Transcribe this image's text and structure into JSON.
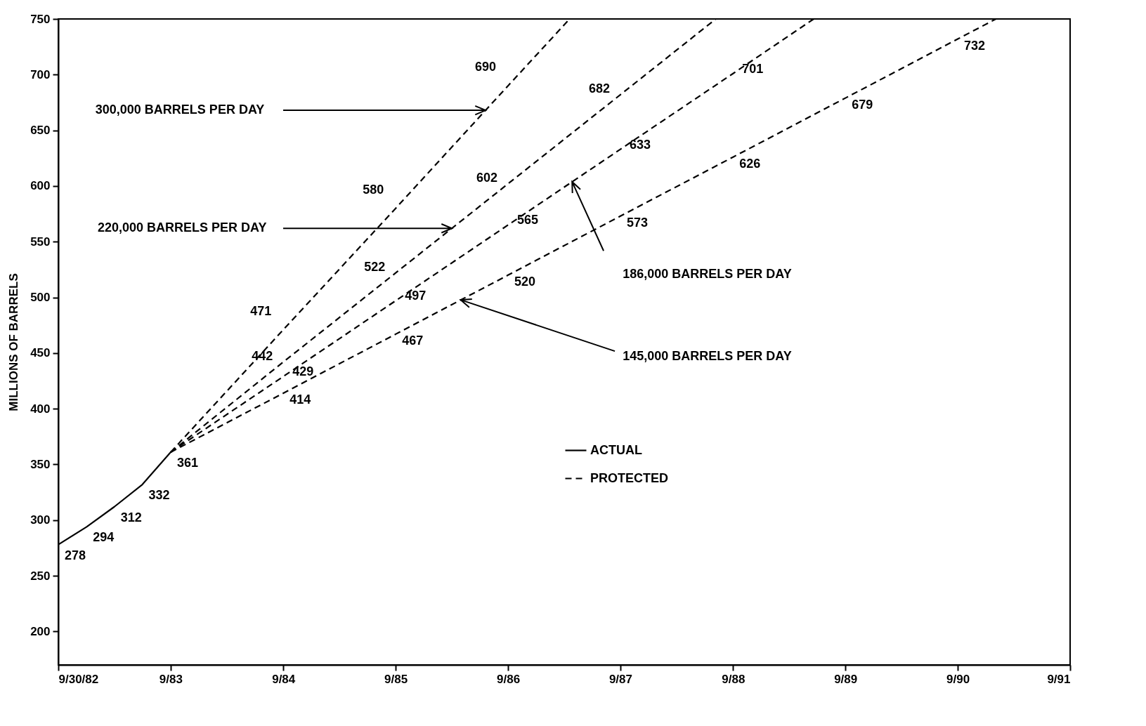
{
  "chart_data": {
    "type": "line",
    "ylabel": "MILLIONS OF BARRELS",
    "xlim": [
      "1982-09-30",
      "1991-09-30"
    ],
    "xticks": [
      {
        "value": "1982-09-30",
        "label": "9/30/82"
      },
      {
        "value": "1983-09-30",
        "label": "9/83"
      },
      {
        "value": "1984-09-30",
        "label": "9/84"
      },
      {
        "value": "1985-09-30",
        "label": "9/85"
      },
      {
        "value": "1986-09-30",
        "label": "9/86"
      },
      {
        "value": "1987-09-30",
        "label": "9/87"
      },
      {
        "value": "1988-09-30",
        "label": "9/88"
      },
      {
        "value": "1989-09-30",
        "label": "9/89"
      },
      {
        "value": "1990-09-30",
        "label": "9/90"
      },
      {
        "value": "1991-09-30",
        "label": "9/91"
      }
    ],
    "ylim": [
      170,
      750
    ],
    "yticks": [
      200,
      250,
      300,
      350,
      400,
      450,
      500,
      550,
      600,
      650,
      700,
      750
    ],
    "grid": false,
    "legend": "center",
    "marker": "none",
    "annotations": [
      "PROTECTED",
      "300,000 BARRELS PER DAY",
      "220,000 BARRELS PER DAY",
      "186,000 BARRELS PER DAY",
      "145,000 BARRELS PER DAY"
    ],
    "series": [
      {
        "name": "ACTUAL",
        "color": "#000000",
        "line_style": "solid",
        "x": [
          "1982-09-30",
          "1982-12-31",
          "1983-03-31",
          "1983-06-30",
          "1983-09-30"
        ],
        "values": [
          278,
          294,
          312,
          332,
          361
        ],
        "value_labels": [
          "278",
          "294",
          "312",
          "332",
          "361"
        ]
      },
      {
        "color": "#000000",
        "line_style": "dashed",
        "x": [
          "1983-09-30",
          "1984-09-30",
          "1985-09-30",
          "1986-09-30",
          "1987-04-18"
        ],
        "values": [
          361,
          471,
          580,
          690,
          750
        ],
        "value_labels": [
          null,
          "471",
          "580",
          "690",
          null
        ]
      },
      {
        "color": "#000000",
        "line_style": "dashed",
        "x": [
          "1983-09-30",
          "1984-09-30",
          "1985-09-30",
          "1986-09-30",
          "1987-09-30",
          "1988-08-05"
        ],
        "values": [
          361,
          442,
          522,
          602,
          682,
          750
        ],
        "value_labels": [
          null,
          "442",
          "522",
          "602",
          "682",
          null
        ]
      },
      {
        "color": "#000000",
        "line_style": "dashed",
        "x": [
          "1983-09-30",
          "1984-09-30",
          "1985-09-30",
          "1986-09-30",
          "1987-09-30",
          "1988-09-30",
          "1989-06-19"
        ],
        "values": [
          361,
          429,
          497,
          565,
          633,
          701,
          750
        ],
        "value_labels": [
          null,
          "429",
          "497",
          "565",
          "633",
          "701",
          null
        ]
      },
      {
        "color": "#000000",
        "line_style": "dashed",
        "x": [
          "1983-09-30",
          "1984-09-30",
          "1985-09-30",
          "1986-09-30",
          "1987-09-30",
          "1988-09-30",
          "1989-09-30",
          "1990-09-30",
          "1991-02-01"
        ],
        "values": [
          361,
          414,
          467,
          520,
          573,
          626,
          679,
          732,
          750
        ],
        "value_labels": [
          null,
          "414",
          "467",
          "520",
          "573",
          "626",
          "679",
          "732",
          null
        ]
      }
    ]
  }
}
